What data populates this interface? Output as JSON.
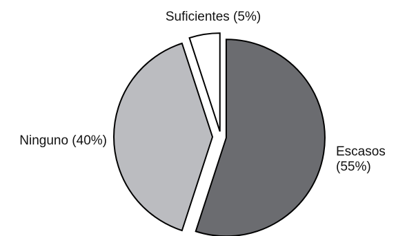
{
  "chart_data": {
    "type": "pie",
    "title": "",
    "slices": [
      {
        "label": "Escasos",
        "percent_label": "(55%)",
        "value": 55,
        "color": "#6b6c70"
      },
      {
        "label": "Ninguno",
        "percent_label": "(40%)",
        "value": 40,
        "color": "#bbbcc0"
      },
      {
        "label": "Suficientes",
        "percent_label": "(5%)",
        "value": 5,
        "color": "#ffffff"
      }
    ],
    "exploded": true,
    "legend": "none",
    "label_placement": "outside"
  }
}
